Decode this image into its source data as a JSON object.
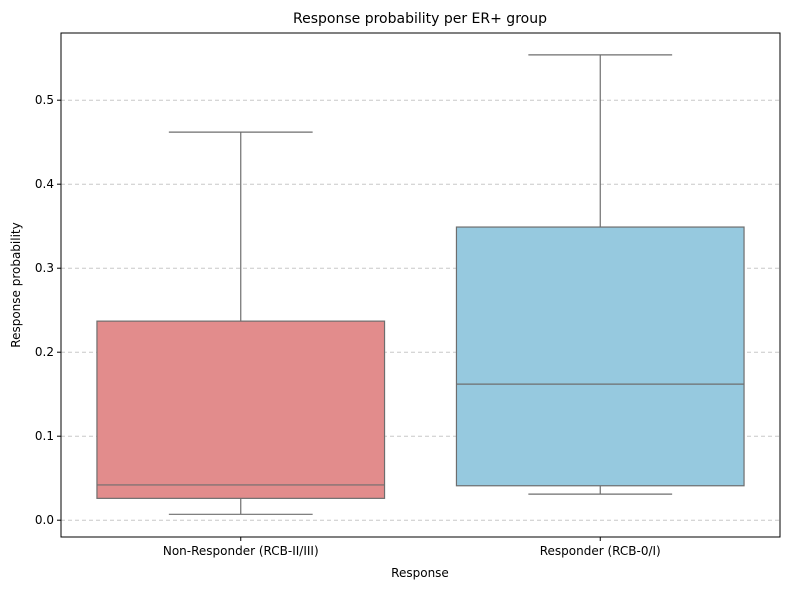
{
  "chart_data": {
    "type": "box",
    "title": "Response probability per ER+ group",
    "xlabel": "Response",
    "ylabel": "Response probability",
    "ylim": [
      -0.02,
      0.58
    ],
    "yticks": [
      0.0,
      0.1,
      0.2,
      0.3,
      0.4,
      0.5
    ],
    "ytick_labels": [
      "0.0",
      "0.1",
      "0.2",
      "0.3",
      "0.4",
      "0.5"
    ],
    "grid": "horizontal-dashed",
    "categories": [
      "Non-Responder (RCB-II/III)",
      "Responder (RCB-0/I)"
    ],
    "boxes": [
      {
        "category": "Non-Responder (RCB-II/III)",
        "whisker_low": 0.007,
        "q1": 0.026,
        "median": 0.042,
        "q3": 0.237,
        "whisker_high": 0.462,
        "color": "#e28c8c"
      },
      {
        "category": "Responder (RCB-0/I)",
        "whisker_low": 0.031,
        "q1": 0.041,
        "median": 0.162,
        "q3": 0.349,
        "whisker_high": 0.554,
        "color": "#96c9df"
      }
    ]
  }
}
